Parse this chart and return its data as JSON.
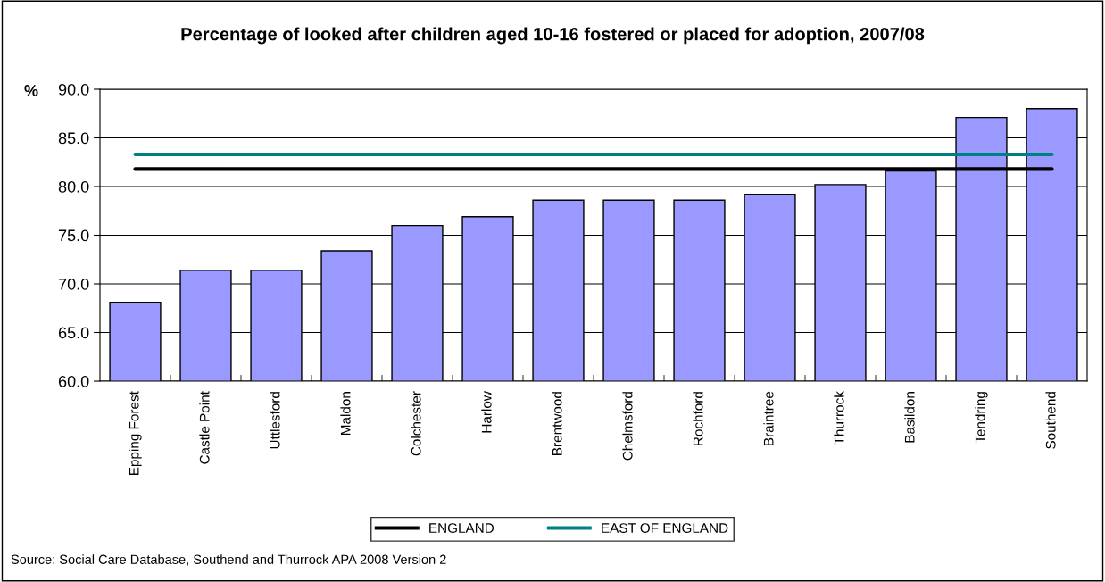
{
  "chart_data": {
    "type": "bar",
    "title": "Percentage of looked after children aged 10-16 fostered or placed for adoption, 2007/08",
    "ylabel": "%",
    "categories": [
      "Epping Forest",
      "Castle Point",
      "Uttlesford",
      "Maldon",
      "Colchester",
      "Harlow",
      "Brentwood",
      "Chelmsford",
      "Rochford",
      "Braintree",
      "Thurrock",
      "Basildon",
      "Tendring",
      "Southend"
    ],
    "series": [
      {
        "color": "#9999ff",
        "values": [
          68.1,
          71.4,
          71.4,
          73.4,
          76.0,
          76.9,
          78.6,
          78.6,
          78.6,
          79.2,
          80.2,
          81.6,
          87.1,
          88.0
        ]
      },
      {
        "type": "line",
        "name": "ENGLAND",
        "color": "#000000",
        "values": [
          81.8,
          81.8,
          81.8,
          81.8,
          81.8,
          81.8,
          81.8,
          81.8,
          81.8,
          81.8,
          81.8,
          81.8,
          81.8,
          81.8
        ]
      },
      {
        "type": "line",
        "name": "EAST OF ENGLAND",
        "color": "#008080",
        "values": [
          83.3,
          83.3,
          83.3,
          83.3,
          83.3,
          83.3,
          83.3,
          83.3,
          83.3,
          83.3,
          83.3,
          83.3,
          83.3,
          83.3
        ]
      }
    ],
    "ylim": [
      60,
      90
    ],
    "yticks": [
      {
        "value": 60,
        "label": "60.0"
      },
      {
        "value": 65,
        "label": "65.0"
      },
      {
        "value": 70,
        "label": "70.0"
      },
      {
        "value": 75,
        "label": "75.0"
      },
      {
        "value": 80,
        "label": "80.0"
      },
      {
        "value": 85,
        "label": "85.0"
      },
      {
        "value": 90,
        "label": "90.0"
      }
    ],
    "grid": "y",
    "legend": "bottom",
    "annotations": [
      "Source: Social Care Database, Southend and Thurrock APA 2008 Version 2"
    ]
  }
}
